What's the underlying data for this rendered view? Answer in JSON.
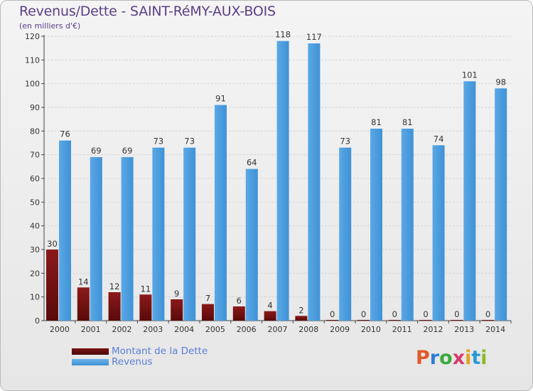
{
  "title": "Revenus/Dette - SAINT-RéMY-AUX-BOIS",
  "subtitle": "(en milliers d'€)",
  "chart_data": {
    "type": "bar",
    "categories": [
      "2000",
      "2001",
      "2002",
      "2003",
      "2004",
      "2005",
      "2006",
      "2007",
      "2008",
      "2009",
      "2010",
      "2011",
      "2012",
      "2013",
      "2014"
    ],
    "series": [
      {
        "name": "Montant de la Dette",
        "color": "#8b1a1a",
        "values": [
          30,
          14,
          12,
          11,
          9,
          7,
          6,
          4,
          2,
          0,
          0,
          0,
          0,
          0,
          0
        ]
      },
      {
        "name": "Revenus",
        "color": "#4ea0e0",
        "values": [
          76,
          69,
          69,
          73,
          73,
          91,
          64,
          118,
          117,
          73,
          81,
          81,
          74,
          101,
          98
        ]
      }
    ],
    "ylim": [
      0,
      120
    ],
    "yticks": [
      0,
      10,
      20,
      30,
      40,
      50,
      60,
      70,
      80,
      90,
      100,
      110,
      120
    ],
    "grid": true,
    "legend_position": "bottom-left"
  },
  "legend": [
    {
      "label": "Montant de la Dette",
      "color": "#6b0f0f"
    },
    {
      "label": "Revenus",
      "color": "#4ea0e0"
    }
  ],
  "logo": {
    "letters": [
      "P",
      "r",
      "o",
      "x",
      "i",
      "t",
      "i"
    ],
    "colors": [
      "#e05a2a",
      "#2a7ed6",
      "#3aaa3a",
      "#d63a6a",
      "#e0a020",
      "#2a9ad6",
      "#8aba2a"
    ]
  }
}
